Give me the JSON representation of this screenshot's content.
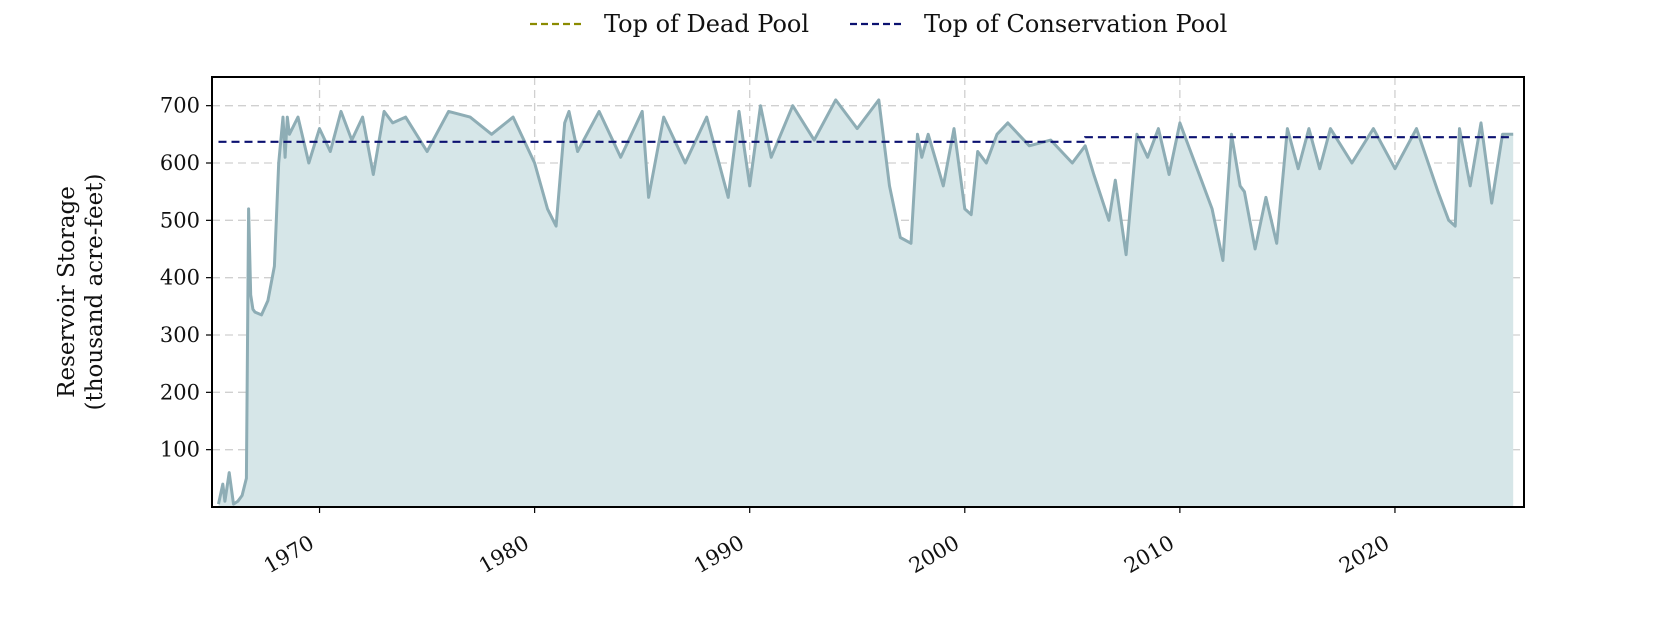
{
  "chart_data": {
    "type": "area",
    "title": "",
    "xlabel": "",
    "ylabel": "Reservoir Storage",
    "ylabel_line2": "(thousand acre-feet)",
    "xlim": [
      1965.0,
      2026.0
    ],
    "ylim": [
      0,
      750
    ],
    "x_ticks": [
      1970,
      1980,
      1990,
      2000,
      2010,
      2020
    ],
    "x_tick_labels": [
      "1970",
      "1980",
      "1990",
      "2000",
      "2010",
      "2020"
    ],
    "y_ticks": [
      100,
      200,
      300,
      400,
      500,
      600,
      700
    ],
    "y_tick_labels": [
      "100",
      "200",
      "300",
      "400",
      "500",
      "600",
      "700"
    ],
    "grid": true,
    "legend_position": "top-center",
    "legend": [
      {
        "name": "Top of Dead Pool",
        "color": "#8b8b00",
        "style": "dashed"
      },
      {
        "name": "Top of Conservation Pool",
        "color": "#0b1170",
        "style": "dashed"
      }
    ],
    "series": [
      {
        "name": "Reservoir Storage",
        "type": "area",
        "color": "#8eadb5",
        "fill": "#d6e6e8",
        "x": [
          1965.3,
          1965.5,
          1965.6,
          1965.8,
          1966.0,
          1966.2,
          1966.4,
          1966.6,
          1966.7,
          1966.8,
          1966.9,
          1967.0,
          1967.3,
          1967.6,
          1967.9,
          1968.1,
          1968.3,
          1968.4,
          1968.5,
          1968.6,
          1969.0,
          1969.5,
          1970.0,
          1970.5,
          1971.0,
          1971.5,
          1972.0,
          1972.5,
          1973.0,
          1973.4,
          1974.0,
          1975.0,
          1976.0,
          1977.0,
          1978.0,
          1979.0,
          1980.0,
          1980.6,
          1981.0,
          1981.4,
          1981.6,
          1982.0,
          1983.0,
          1984.0,
          1985.0,
          1985.3,
          1986.0,
          1987.0,
          1988.0,
          1989.0,
          1989.5,
          1990.0,
          1990.5,
          1991.0,
          1992.0,
          1993.0,
          1994.0,
          1995.0,
          1996.0,
          1996.5,
          1997.0,
          1997.5,
          1997.8,
          1998.0,
          1998.3,
          1999.0,
          1999.5,
          2000.0,
          2000.3,
          2000.6,
          2001.0,
          2001.5,
          2002.0,
          2003.0,
          2004.0,
          2005.0,
          2005.6,
          2006.0,
          2006.7,
          2007.0,
          2007.5,
          2008.0,
          2008.5,
          2009.0,
          2009.5,
          2010.0,
          2010.5,
          2011.0,
          2011.5,
          2012.0,
          2012.4,
          2012.8,
          2013.0,
          2013.5,
          2014.0,
          2014.5,
          2015.0,
          2015.5,
          2016.0,
          2016.5,
          2017.0,
          2018.0,
          2019.0,
          2020.0,
          2021.0,
          2022.0,
          2022.5,
          2022.8,
          2023.0,
          2023.5,
          2024.0,
          2024.5,
          2025.0,
          2025.5
        ],
        "values": [
          5,
          40,
          10,
          60,
          5,
          10,
          20,
          50,
          520,
          370,
          345,
          340,
          335,
          360,
          420,
          600,
          680,
          610,
          680,
          650,
          680,
          600,
          660,
          620,
          690,
          640,
          680,
          580,
          690,
          670,
          680,
          620,
          690,
          680,
          650,
          680,
          600,
          520,
          490,
          670,
          690,
          620,
          690,
          610,
          690,
          540,
          680,
          600,
          680,
          540,
          690,
          560,
          700,
          610,
          700,
          640,
          710,
          660,
          710,
          560,
          470,
          460,
          650,
          610,
          650,
          560,
          660,
          520,
          510,
          620,
          600,
          650,
          670,
          630,
          640,
          600,
          630,
          580,
          500,
          570,
          440,
          650,
          610,
          660,
          580,
          670,
          620,
          570,
          520,
          430,
          650,
          560,
          550,
          450,
          540,
          460,
          660,
          590,
          660,
          590,
          660,
          600,
          660,
          590,
          660,
          550,
          500,
          490,
          660,
          560,
          670,
          530,
          650,
          650
        ]
      },
      {
        "name": "Top of Conservation Pool",
        "type": "step",
        "color": "#0b1170",
        "x": [
          1965.3,
          2005.6,
          2005.6,
          2025.5
        ],
        "values": [
          637,
          637,
          645,
          645
        ]
      }
    ]
  }
}
